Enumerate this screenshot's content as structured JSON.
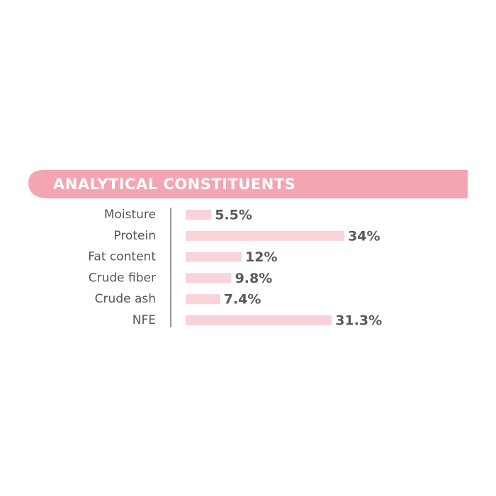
{
  "chart_data": {
    "type": "bar",
    "orientation": "horizontal",
    "title": "ANALYTICAL CONSTITUENTS",
    "categories": [
      "Moisture",
      "Protein",
      "Fat content",
      "Crude fiber",
      "Crude ash",
      "NFE"
    ],
    "values": [
      5.5,
      34,
      12,
      9.8,
      7.4,
      31.3
    ],
    "value_labels": [
      "5.5%",
      "34%",
      "12%",
      "9.8%",
      "7.4%",
      "31.3%"
    ],
    "color": "#f8d3da",
    "header_color": "#f4a5b2"
  }
}
